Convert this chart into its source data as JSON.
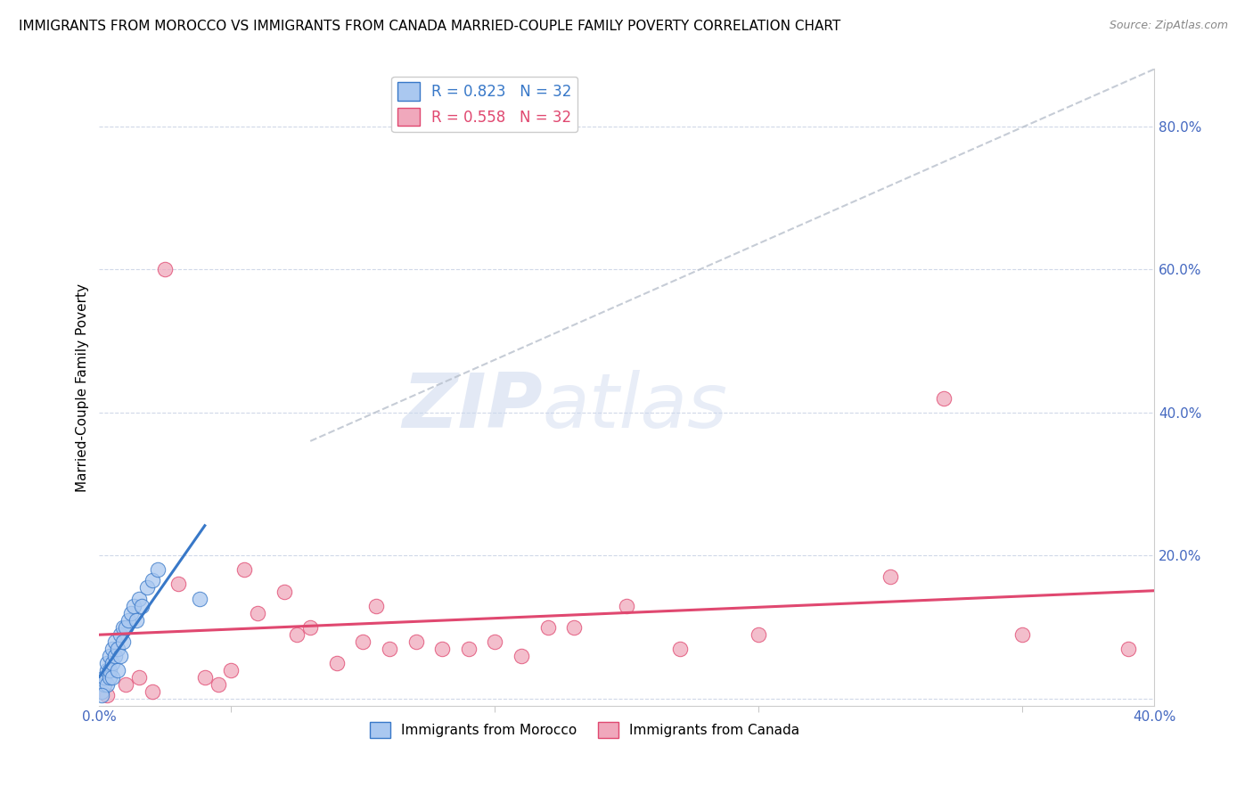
{
  "title": "IMMIGRANTS FROM MOROCCO VS IMMIGRANTS FROM CANADA MARRIED-COUPLE FAMILY POVERTY CORRELATION CHART",
  "source": "Source: ZipAtlas.com",
  "ylabel": "Married-Couple Family Poverty",
  "xlim": [
    0.0,
    0.4
  ],
  "ylim": [
    -0.01,
    0.88
  ],
  "morocco_R": 0.823,
  "morocco_N": 32,
  "canada_R": 0.558,
  "canada_N": 32,
  "morocco_color": "#aac8f0",
  "canada_color": "#f0a8bc",
  "morocco_line_color": "#3878c8",
  "canada_line_color": "#e04870",
  "diagonal_color": "#b8c0cc",
  "watermark_zip": "ZIP",
  "watermark_atlas": "atlas",
  "background_color": "#ffffff",
  "grid_color": "#d0d8e8",
  "title_fontsize": 11,
  "tick_label_color": "#4468c0",
  "morocco_x": [
    0.001,
    0.002,
    0.002,
    0.003,
    0.003,
    0.003,
    0.004,
    0.004,
    0.004,
    0.005,
    0.005,
    0.005,
    0.006,
    0.006,
    0.007,
    0.007,
    0.008,
    0.008,
    0.009,
    0.009,
    0.01,
    0.011,
    0.012,
    0.013,
    0.014,
    0.015,
    0.016,
    0.018,
    0.02,
    0.022,
    0.038,
    0.001
  ],
  "morocco_y": [
    0.01,
    0.02,
    0.03,
    0.04,
    0.05,
    0.02,
    0.03,
    0.06,
    0.04,
    0.07,
    0.05,
    0.03,
    0.08,
    0.06,
    0.07,
    0.04,
    0.09,
    0.06,
    0.08,
    0.1,
    0.1,
    0.11,
    0.12,
    0.13,
    0.11,
    0.14,
    0.13,
    0.155,
    0.165,
    0.18,
    0.14,
    0.005
  ],
  "canada_x": [
    0.003,
    0.01,
    0.015,
    0.02,
    0.025,
    0.03,
    0.04,
    0.045,
    0.05,
    0.055,
    0.06,
    0.07,
    0.075,
    0.08,
    0.09,
    0.1,
    0.105,
    0.11,
    0.12,
    0.13,
    0.14,
    0.15,
    0.16,
    0.17,
    0.18,
    0.2,
    0.22,
    0.25,
    0.3,
    0.32,
    0.35,
    0.39
  ],
  "canada_y": [
    0.005,
    0.02,
    0.03,
    0.01,
    0.6,
    0.16,
    0.03,
    0.02,
    0.04,
    0.18,
    0.12,
    0.15,
    0.09,
    0.1,
    0.05,
    0.08,
    0.13,
    0.07,
    0.08,
    0.07,
    0.07,
    0.08,
    0.06,
    0.1,
    0.1,
    0.13,
    0.07,
    0.09,
    0.17,
    0.42,
    0.09,
    0.07
  ]
}
